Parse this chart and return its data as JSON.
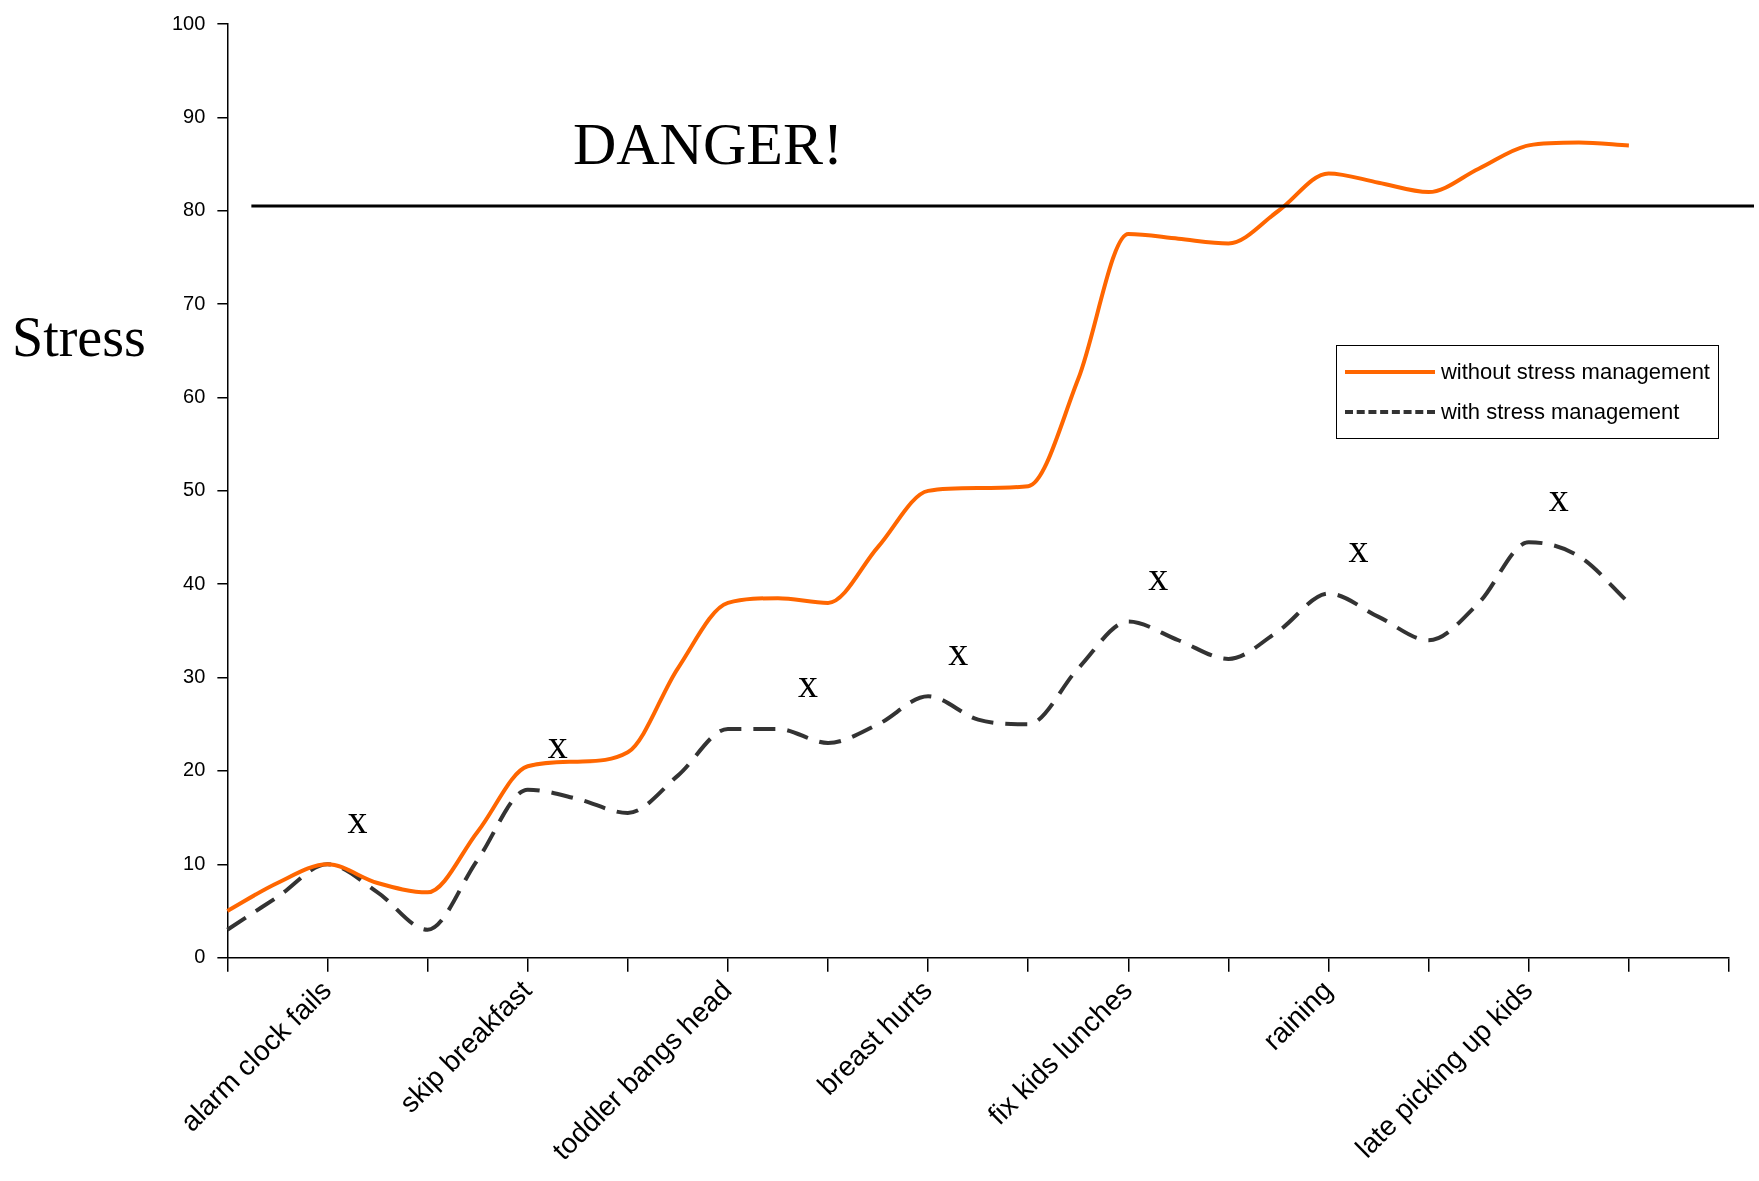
{
  "chart_data": {
    "type": "line",
    "ylabel": "Stress",
    "categories": [
      null,
      null,
      "alarm clock fails",
      null,
      null,
      null,
      "skip breakfast",
      null,
      null,
      null,
      "toddler bangs head",
      null,
      null,
      null,
      "breast hurts",
      null,
      null,
      null,
      "fix kids lunches",
      null,
      null,
      null,
      "raining",
      null,
      null,
      null,
      "late picking up kids",
      null,
      null,
      null,
      null
    ],
    "series": [
      {
        "name": "without stress management",
        "color": "#ff6600",
        "line_style": "solid",
        "values": [
          5,
          8,
          10,
          8,
          7,
          13.5,
          20.5,
          21,
          22,
          31,
          38,
          38.5,
          38,
          44,
          50,
          50.3,
          50.5,
          62,
          77.5,
          77,
          76.5,
          80,
          84,
          83,
          82,
          84.5,
          87,
          87.3,
          87,
          null,
          null
        ]
      },
      {
        "name": "with stress management",
        "color": "#333333",
        "line_style": "dashed",
        "values": [
          3,
          6.5,
          10,
          7,
          3,
          10.5,
          18,
          17,
          15.5,
          19.5,
          24.5,
          24.5,
          23,
          25,
          28,
          25.5,
          25,
          31,
          36,
          34,
          32,
          35,
          39,
          36.5,
          34,
          38,
          44.5,
          43,
          38,
          null,
          null
        ]
      }
    ],
    "ylim": [
      0,
      100
    ],
    "yticks": [
      0,
      10,
      20,
      30,
      40,
      50,
      60,
      70,
      80,
      90,
      100
    ],
    "grid": false,
    "legend": "right",
    "marker": "none",
    "ref_lines": [
      {
        "axis": "y",
        "value": 80.5,
        "label": "DANGER!",
        "color": "#000000"
      }
    ],
    "annotations": [
      "x",
      "x",
      "x",
      "x",
      "x",
      "x",
      "x"
    ]
  }
}
